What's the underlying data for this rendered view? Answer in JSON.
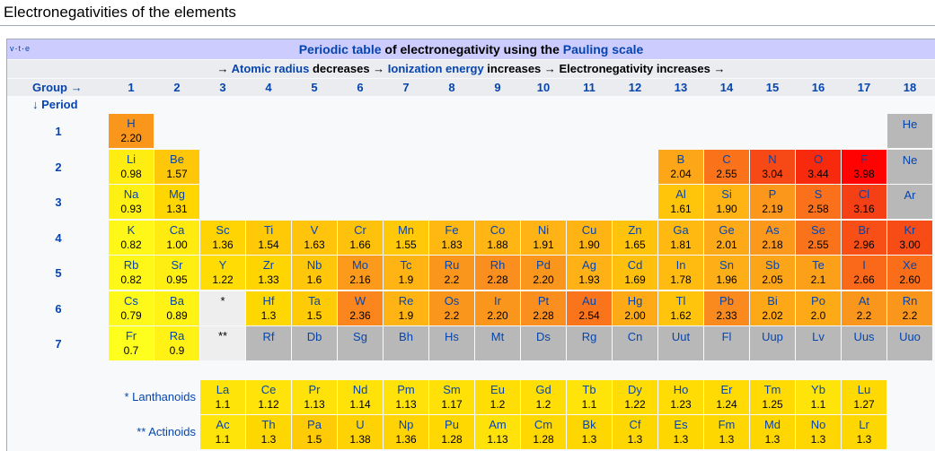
{
  "page": {
    "title": "Electronegativities of the elements"
  },
  "navbox": {
    "vte": {
      "v": "v",
      "t": "t",
      "e": "e",
      "sep": "·"
    },
    "title": {
      "link1": "Periodic table",
      "mid": " of electronegativity using the ",
      "link2": "Pauling scale"
    },
    "trend": {
      "a1": "→ ",
      "l1": "Atomic radius",
      "a2": " decreases → ",
      "l2": "Ionization energy",
      "a3": " increases → Electronegativity increases →"
    },
    "group_label": "Group →",
    "period_label": "↓ Period",
    "groups": [
      "1",
      "2",
      "3",
      "4",
      "5",
      "6",
      "7",
      "8",
      "9",
      "10",
      "11",
      "12",
      "13",
      "14",
      "15",
      "16",
      "17",
      "18"
    ],
    "periods": [
      "1",
      "2",
      "3",
      "4",
      "5",
      "6",
      "7"
    ],
    "lanthanoids_label": "* Lanthanoids",
    "actinoids_label": "** Actinoids",
    "star": "*",
    "dstar": "**"
  },
  "colors": {
    "page_bg": "#ffffff",
    "navbox_bg": "#f8f9fa",
    "title_band": "#ccccff",
    "header_band": "#eaecf0",
    "unknown": "#b8b8b8",
    "link": "#0645ad"
  },
  "elements": [
    {
      "s": "H",
      "en": "2.20",
      "g": 1,
      "p": 1
    },
    {
      "s": "He",
      "en": "",
      "g": 18,
      "p": 1
    },
    {
      "s": "Li",
      "en": "0.98",
      "g": 1,
      "p": 2
    },
    {
      "s": "Be",
      "en": "1.57",
      "g": 2,
      "p": 2
    },
    {
      "s": "B",
      "en": "2.04",
      "g": 13,
      "p": 2
    },
    {
      "s": "C",
      "en": "2.55",
      "g": 14,
      "p": 2
    },
    {
      "s": "N",
      "en": "3.04",
      "g": 15,
      "p": 2
    },
    {
      "s": "O",
      "en": "3.44",
      "g": 16,
      "p": 2
    },
    {
      "s": "F",
      "en": "3.98",
      "g": 17,
      "p": 2
    },
    {
      "s": "Ne",
      "en": "",
      "g": 18,
      "p": 2
    },
    {
      "s": "Na",
      "en": "0.93",
      "g": 1,
      "p": 3
    },
    {
      "s": "Mg",
      "en": "1.31",
      "g": 2,
      "p": 3
    },
    {
      "s": "Al",
      "en": "1.61",
      "g": 13,
      "p": 3
    },
    {
      "s": "Si",
      "en": "1.90",
      "g": 14,
      "p": 3
    },
    {
      "s": "P",
      "en": "2.19",
      "g": 15,
      "p": 3
    },
    {
      "s": "S",
      "en": "2.58",
      "g": 16,
      "p": 3
    },
    {
      "s": "Cl",
      "en": "3.16",
      "g": 17,
      "p": 3
    },
    {
      "s": "Ar",
      "en": "",
      "g": 18,
      "p": 3
    },
    {
      "s": "K",
      "en": "0.82",
      "g": 1,
      "p": 4
    },
    {
      "s": "Ca",
      "en": "1.00",
      "g": 2,
      "p": 4
    },
    {
      "s": "Sc",
      "en": "1.36",
      "g": 3,
      "p": 4
    },
    {
      "s": "Ti",
      "en": "1.54",
      "g": 4,
      "p": 4
    },
    {
      "s": "V",
      "en": "1.63",
      "g": 5,
      "p": 4
    },
    {
      "s": "Cr",
      "en": "1.66",
      "g": 6,
      "p": 4
    },
    {
      "s": "Mn",
      "en": "1.55",
      "g": 7,
      "p": 4
    },
    {
      "s": "Fe",
      "en": "1.83",
      "g": 8,
      "p": 4
    },
    {
      "s": "Co",
      "en": "1.88",
      "g": 9,
      "p": 4
    },
    {
      "s": "Ni",
      "en": "1.91",
      "g": 10,
      "p": 4
    },
    {
      "s": "Cu",
      "en": "1.90",
      "g": 11,
      "p": 4
    },
    {
      "s": "Zn",
      "en": "1.65",
      "g": 12,
      "p": 4
    },
    {
      "s": "Ga",
      "en": "1.81",
      "g": 13,
      "p": 4
    },
    {
      "s": "Ge",
      "en": "2.01",
      "g": 14,
      "p": 4
    },
    {
      "s": "As",
      "en": "2.18",
      "g": 15,
      "p": 4
    },
    {
      "s": "Se",
      "en": "2.55",
      "g": 16,
      "p": 4
    },
    {
      "s": "Br",
      "en": "2.96",
      "g": 17,
      "p": 4
    },
    {
      "s": "Kr",
      "en": "3.00",
      "g": 18,
      "p": 4
    },
    {
      "s": "Rb",
      "en": "0.82",
      "g": 1,
      "p": 5
    },
    {
      "s": "Sr",
      "en": "0.95",
      "g": 2,
      "p": 5
    },
    {
      "s": "Y",
      "en": "1.22",
      "g": 3,
      "p": 5
    },
    {
      "s": "Zr",
      "en": "1.33",
      "g": 4,
      "p": 5
    },
    {
      "s": "Nb",
      "en": "1.6",
      "g": 5,
      "p": 5
    },
    {
      "s": "Mo",
      "en": "2.16",
      "g": 6,
      "p": 5
    },
    {
      "s": "Tc",
      "en": "1.9",
      "g": 7,
      "p": 5
    },
    {
      "s": "Ru",
      "en": "2.2",
      "g": 8,
      "p": 5
    },
    {
      "s": "Rh",
      "en": "2.28",
      "g": 9,
      "p": 5
    },
    {
      "s": "Pd",
      "en": "2.20",
      "g": 10,
      "p": 5
    },
    {
      "s": "Ag",
      "en": "1.93",
      "g": 11,
      "p": 5
    },
    {
      "s": "Cd",
      "en": "1.69",
      "g": 12,
      "p": 5
    },
    {
      "s": "In",
      "en": "1.78",
      "g": 13,
      "p": 5
    },
    {
      "s": "Sn",
      "en": "1.96",
      "g": 14,
      "p": 5
    },
    {
      "s": "Sb",
      "en": "2.05",
      "g": 15,
      "p": 5
    },
    {
      "s": "Te",
      "en": "2.1",
      "g": 16,
      "p": 5
    },
    {
      "s": "I",
      "en": "2.66",
      "g": 17,
      "p": 5
    },
    {
      "s": "Xe",
      "en": "2.60",
      "g": 18,
      "p": 5
    },
    {
      "s": "Cs",
      "en": "0.79",
      "g": 1,
      "p": 6
    },
    {
      "s": "Ba",
      "en": "0.89",
      "g": 2,
      "p": 6
    },
    {
      "s": "Hf",
      "en": "1.3",
      "g": 4,
      "p": 6
    },
    {
      "s": "Ta",
      "en": "1.5",
      "g": 5,
      "p": 6
    },
    {
      "s": "W",
      "en": "2.36",
      "g": 6,
      "p": 6
    },
    {
      "s": "Re",
      "en": "1.9",
      "g": 7,
      "p": 6
    },
    {
      "s": "Os",
      "en": "2.2",
      "g": 8,
      "p": 6
    },
    {
      "s": "Ir",
      "en": "2.20",
      "g": 9,
      "p": 6
    },
    {
      "s": "Pt",
      "en": "2.28",
      "g": 10,
      "p": 6
    },
    {
      "s": "Au",
      "en": "2.54",
      "g": 11,
      "p": 6
    },
    {
      "s": "Hg",
      "en": "2.00",
      "g": 12,
      "p": 6
    },
    {
      "s": "Tl",
      "en": "1.62",
      "g": 13,
      "p": 6
    },
    {
      "s": "Pb",
      "en": "2.33",
      "g": 14,
      "p": 6
    },
    {
      "s": "Bi",
      "en": "2.02",
      "g": 15,
      "p": 6
    },
    {
      "s": "Po",
      "en": "2.0",
      "g": 16,
      "p": 6
    },
    {
      "s": "At",
      "en": "2.2",
      "g": 17,
      "p": 6
    },
    {
      "s": "Rn",
      "en": "2.2",
      "g": 18,
      "p": 6
    },
    {
      "s": "Fr",
      "en": "0.7",
      "g": 1,
      "p": 7
    },
    {
      "s": "Ra",
      "en": "0.9",
      "g": 2,
      "p": 7
    },
    {
      "s": "Rf",
      "en": "",
      "g": 4,
      "p": 7
    },
    {
      "s": "Db",
      "en": "",
      "g": 5,
      "p": 7
    },
    {
      "s": "Sg",
      "en": "",
      "g": 6,
      "p": 7
    },
    {
      "s": "Bh",
      "en": "",
      "g": 7,
      "p": 7
    },
    {
      "s": "Hs",
      "en": "",
      "g": 8,
      "p": 7
    },
    {
      "s": "Mt",
      "en": "",
      "g": 9,
      "p": 7
    },
    {
      "s": "Ds",
      "en": "",
      "g": 10,
      "p": 7
    },
    {
      "s": "Rg",
      "en": "",
      "g": 11,
      "p": 7
    },
    {
      "s": "Cn",
      "en": "",
      "g": 12,
      "p": 7
    },
    {
      "s": "Uut",
      "en": "",
      "g": 13,
      "p": 7
    },
    {
      "s": "Fl",
      "en": "",
      "g": 14,
      "p": 7
    },
    {
      "s": "Uup",
      "en": "",
      "g": 15,
      "p": 7
    },
    {
      "s": "Lv",
      "en": "",
      "g": 16,
      "p": 7
    },
    {
      "s": "Uus",
      "en": "",
      "g": 17,
      "p": 7
    },
    {
      "s": "Uuo",
      "en": "",
      "g": 18,
      "p": 7
    }
  ],
  "lanthanoids": [
    {
      "s": "La",
      "en": "1.1"
    },
    {
      "s": "Ce",
      "en": "1.12"
    },
    {
      "s": "Pr",
      "en": "1.13"
    },
    {
      "s": "Nd",
      "en": "1.14"
    },
    {
      "s": "Pm",
      "en": "1.13"
    },
    {
      "s": "Sm",
      "en": "1.17"
    },
    {
      "s": "Eu",
      "en": "1.2"
    },
    {
      "s": "Gd",
      "en": "1.2"
    },
    {
      "s": "Tb",
      "en": "1.1"
    },
    {
      "s": "Dy",
      "en": "1.22"
    },
    {
      "s": "Ho",
      "en": "1.23"
    },
    {
      "s": "Er",
      "en": "1.24"
    },
    {
      "s": "Tm",
      "en": "1.25"
    },
    {
      "s": "Yb",
      "en": "1.1"
    },
    {
      "s": "Lu",
      "en": "1.27"
    }
  ],
  "actinoids": [
    {
      "s": "Ac",
      "en": "1.1"
    },
    {
      "s": "Th",
      "en": "1.3"
    },
    {
      "s": "Pa",
      "en": "1.5"
    },
    {
      "s": "U",
      "en": "1.38"
    },
    {
      "s": "Np",
      "en": "1.36"
    },
    {
      "s": "Pu",
      "en": "1.28"
    },
    {
      "s": "Am",
      "en": "1.13"
    },
    {
      "s": "Cm",
      "en": "1.28"
    },
    {
      "s": "Bk",
      "en": "1.3"
    },
    {
      "s": "Cf",
      "en": "1.3"
    },
    {
      "s": "Es",
      "en": "1.3"
    },
    {
      "s": "Fm",
      "en": "1.3"
    },
    {
      "s": "Md",
      "en": "1.3"
    },
    {
      "s": "No",
      "en": "1.3"
    },
    {
      "s": "Lr",
      "en": "1.3"
    }
  ]
}
